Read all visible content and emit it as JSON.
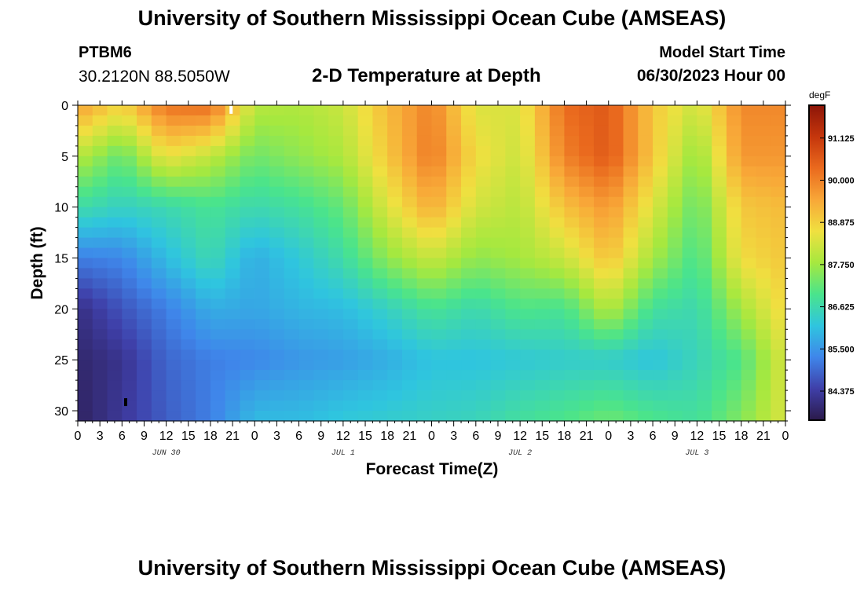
{
  "page": {
    "title": "University of Southern Mississippi Ocean Cube (AMSEAS)",
    "title_repeat": "University of Southern Mississippi Ocean Cube (AMSEAS)",
    "station": "PTBM6",
    "coords": "30.2120N  88.5050W",
    "subtitle": "2-D Temperature at Depth",
    "start_label": "Model Start Time",
    "start_value": "06/30/2023 Hour 00"
  },
  "chart_data": {
    "type": "heatmap",
    "title": "2-D Temperature at Depth",
    "xlabel": "Forecast Time(Z)",
    "ylabel": "Depth (ft)",
    "x_ticks": [
      "0",
      "3",
      "6",
      "9",
      "12",
      "15",
      "18",
      "21",
      "0",
      "3",
      "6",
      "9",
      "12",
      "15",
      "18",
      "21",
      "0",
      "3",
      "6",
      "9",
      "12",
      "15",
      "18",
      "21",
      "0",
      "3",
      "6",
      "9",
      "12",
      "15",
      "18",
      "21",
      "0"
    ],
    "x_range_hours": [
      0,
      96
    ],
    "day_labels": [
      {
        "label": "JUN 30",
        "hour": 12
      },
      {
        "label": "JUL 1",
        "hour": 36
      },
      {
        "label": "JUL 2",
        "hour": 60
      },
      {
        "label": "JUL 3",
        "hour": 84
      }
    ],
    "y_ticks": [
      "0",
      "5",
      "10",
      "15",
      "20",
      "25",
      "30"
    ],
    "y_range_ft": [
      0,
      31
    ],
    "colorbar": {
      "unit": "degF",
      "range": [
        83.6,
        92.0
      ],
      "tick_labels": [
        "91.125",
        "90.000",
        "88.875",
        "87.750",
        "86.625",
        "85.500",
        "84.375"
      ],
      "tick_values": [
        91.125,
        90.0,
        88.875,
        87.75,
        86.625,
        85.5,
        84.375
      ],
      "colors": [
        "#2b1a4a",
        "#3f3fa8",
        "#3f86ea",
        "#2fc5df",
        "#4ae48c",
        "#a6e83f",
        "#f0e040",
        "#f8a738",
        "#ea6a1e",
        "#c5360c",
        "#8c1508"
      ]
    },
    "grid_hours_step": 2,
    "grid_depth_step_ft": 1,
    "temperature_field": {
      "description": "temperature (degF) estimated from colors, columns = forecast hour, rows = depth ft",
      "hours": [
        0,
        6,
        12,
        18,
        24,
        30,
        36,
        42,
        48,
        54,
        60,
        66,
        72,
        78,
        84,
        90,
        96
      ],
      "depths": [
        0,
        5,
        10,
        15,
        20,
        25,
        31
      ],
      "values": [
        [
          89.6,
          88.8,
          90.2,
          90.3,
          88.0,
          87.9,
          88.2,
          89.2,
          90.0,
          88.4,
          88.4,
          90.3,
          90.6,
          89.0,
          88.2,
          89.9,
          89.9
        ],
        [
          88.0,
          87.2,
          88.6,
          88.1,
          87.3,
          87.6,
          87.9,
          89.0,
          90.1,
          88.7,
          88.2,
          90.0,
          90.6,
          89.0,
          87.6,
          89.7,
          89.7
        ],
        [
          86.7,
          86.4,
          86.6,
          86.9,
          86.6,
          86.8,
          87.2,
          88.4,
          89.4,
          88.3,
          88.0,
          89.1,
          89.7,
          88.4,
          87.2,
          89.0,
          89.2
        ],
        [
          85.2,
          85.3,
          86.0,
          86.6,
          85.8,
          86.2,
          86.7,
          87.6,
          88.2,
          87.6,
          87.8,
          88.2,
          89.1,
          87.8,
          86.9,
          88.7,
          89.0
        ],
        [
          84.1,
          84.7,
          85.2,
          85.8,
          85.7,
          85.9,
          86.0,
          86.4,
          86.9,
          86.6,
          87.0,
          86.9,
          88.0,
          86.8,
          86.6,
          87.8,
          88.8
        ],
        [
          83.9,
          84.2,
          84.9,
          85.2,
          85.3,
          85.5,
          85.6,
          85.8,
          86.1,
          86.1,
          86.2,
          86.3,
          86.3,
          86.1,
          86.5,
          87.0,
          88.4
        ],
        [
          83.8,
          84.3,
          84.8,
          85.2,
          86.0,
          86.0,
          86.2,
          86.3,
          86.4,
          86.5,
          86.8,
          87.0,
          87.3,
          87.0,
          86.8,
          87.5,
          88.4
        ]
      ]
    },
    "markers": [
      {
        "hour": 20.8,
        "depth": 0.3,
        "color": "#ffffff"
      },
      {
        "hour": 6.5,
        "depth": 29.0,
        "color": "#000000"
      }
    ]
  }
}
